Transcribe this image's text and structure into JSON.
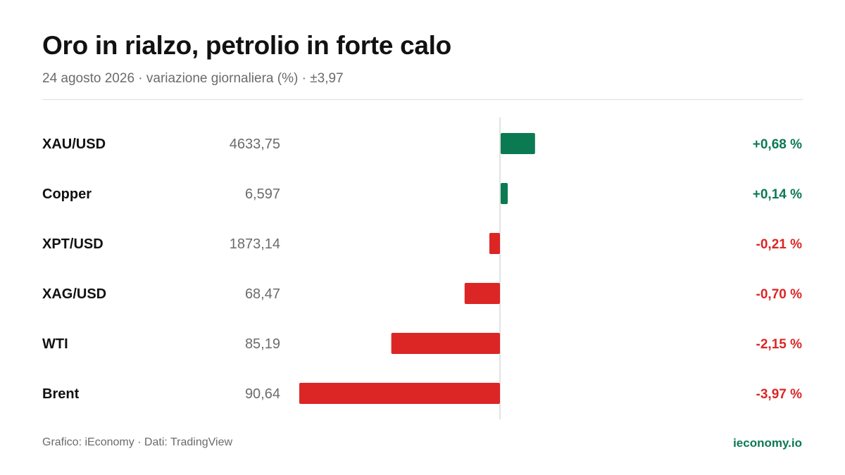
{
  "header": {
    "title": "Oro in rialzo, petrolio in forte calo",
    "subtitle": "24 agosto 2026 · variazione giornaliera (%) · ±3,97"
  },
  "footer": {
    "source": "Grafico: iEconomy · Dati: TradingView",
    "brand": "ieconomy.io"
  },
  "colors": {
    "positive": "#0b7a52",
    "negative": "#dc2626",
    "axis": "#d9d9d9"
  },
  "chart_data": {
    "type": "bar",
    "orientation": "horizontal",
    "xlim": [
      -3.97,
      3.97
    ],
    "categories": [
      "XAU/USD",
      "Copper",
      "XPT/USD",
      "XAG/USD",
      "WTI",
      "Brent"
    ],
    "prices": [
      "4633,75",
      "6,597",
      "1873,14",
      "68,47",
      "85,19",
      "90,64"
    ],
    "values": [
      0.68,
      0.14,
      -0.21,
      -0.7,
      -2.15,
      -3.97
    ],
    "value_labels": [
      "+0,68 %",
      "+0,14 %",
      "-0,21 %",
      "-0,70 %",
      "-2,15 %",
      "-3,97 %"
    ]
  }
}
